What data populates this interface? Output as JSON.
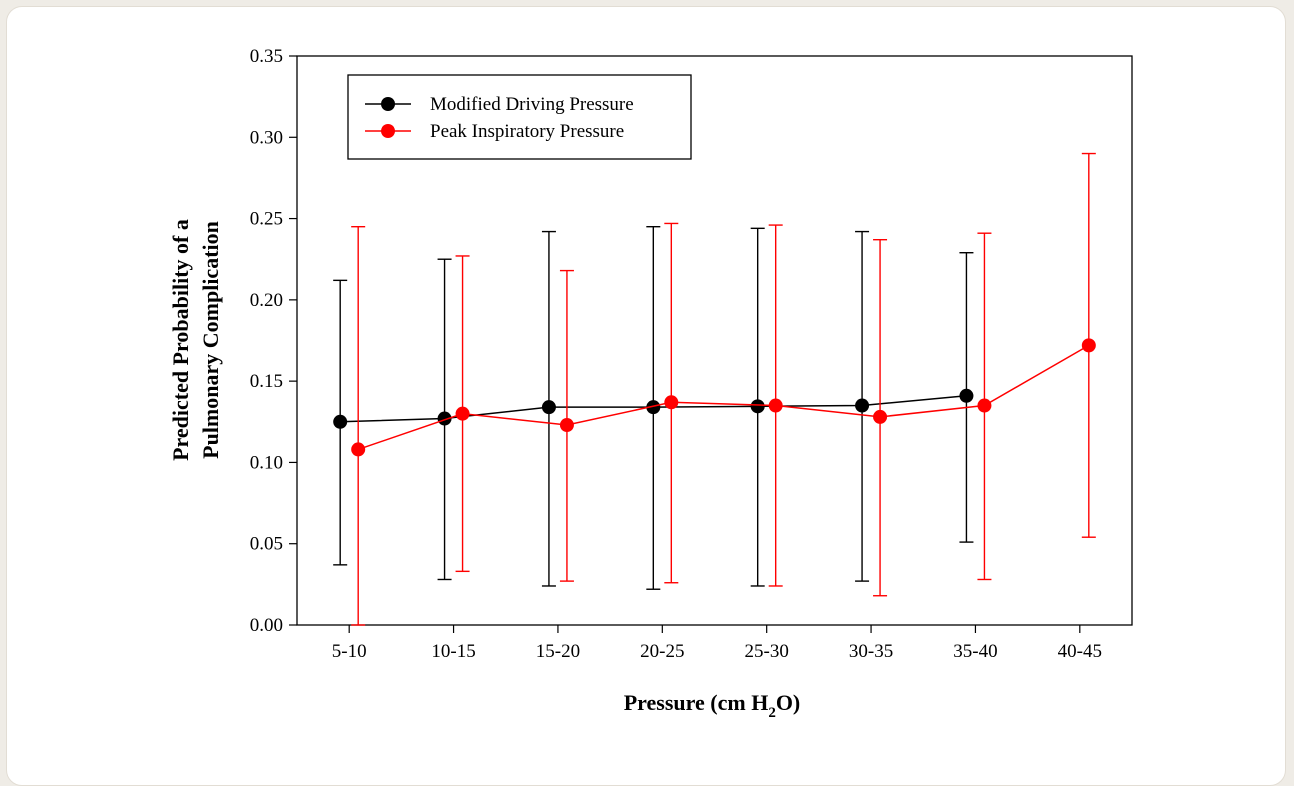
{
  "chart_data": {
    "type": "line",
    "xlabel": "Pressure (cm H₂O)",
    "xlabel_parts": {
      "before": "Pressure (cm H",
      "sub": "2",
      "after": "O)"
    },
    "ylabel_lines": [
      "Predicted Probability of a",
      "Pulmonary Complication"
    ],
    "categories": [
      "5-10",
      "10-15",
      "15-20",
      "20-25",
      "25-30",
      "30-35",
      "35-40",
      "40-45"
    ],
    "ylim": [
      0,
      0.35
    ],
    "y_ticks": [
      "0.00",
      "0.05",
      "0.10",
      "0.15",
      "0.20",
      "0.25",
      "0.30",
      "0.35"
    ],
    "legend_position": "top-left",
    "series": [
      {
        "name": "Modified Driving Pressure",
        "color": "#000000",
        "values": [
          0.125,
          0.127,
          0.134,
          0.134,
          0.1345,
          0.135,
          0.141,
          null
        ],
        "err_low": [
          0.037,
          0.028,
          0.024,
          0.022,
          0.024,
          0.027,
          0.051,
          null
        ],
        "err_high": [
          0.212,
          0.225,
          0.242,
          0.245,
          0.244,
          0.242,
          0.229,
          null
        ]
      },
      {
        "name": "Peak Inspiratory Pressure",
        "color": "#ff0000",
        "values": [
          0.108,
          0.13,
          0.123,
          0.137,
          0.135,
          0.128,
          0.135,
          0.172
        ],
        "err_low": [
          0.0,
          0.033,
          0.027,
          0.026,
          0.024,
          0.018,
          0.028,
          0.054
        ],
        "err_high": [
          0.245,
          0.227,
          0.218,
          0.247,
          0.246,
          0.237,
          0.241,
          0.29
        ]
      }
    ]
  }
}
